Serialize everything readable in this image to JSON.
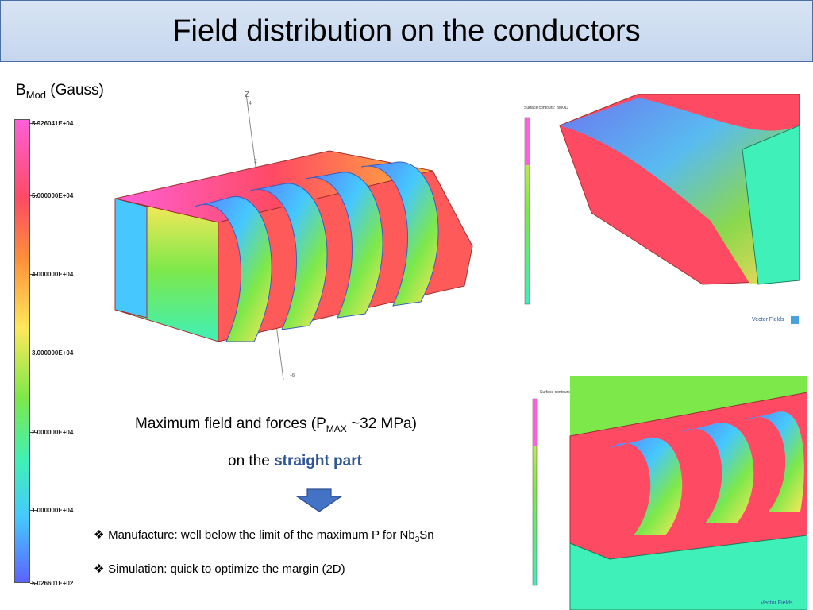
{
  "title": "Field distribution on the conductors",
  "legend": {
    "b": "B",
    "sub": "Mod",
    "unit": "(Gauss)",
    "ticks": [
      "5.926041E+04",
      "5.000000E+04",
      "4.000000E+04",
      "3.000000E+04",
      "2.000000E+04",
      "1.000000E+04",
      "5.026601E+02"
    ]
  },
  "main_text": {
    "prefix": "Maximum field and forces (P",
    "sub": "MAX",
    "suffix": " ~32 MPa)",
    "line2_prefix": "on the ",
    "line2_emph": "straight part"
  },
  "bullets": [
    {
      "prefix": "Manufacture: well below the limit of the maximum P for Nb",
      "sub": "3",
      "suffix": "Sn"
    },
    {
      "prefix": "Simulation: quick to optimize the margin (2D)",
      "sub": "",
      "suffix": ""
    }
  ],
  "inset_labels": {
    "top_caption": "Surface contours: BMOD",
    "bottom_caption": "Surface contours: BMOD",
    "brand": "Vector Fields"
  },
  "axis_labels": {
    "z": "Z",
    "two": "2",
    "four": "4",
    "neg6": "-6"
  },
  "colors": {
    "title_bg": "#c9d8ef",
    "emphasis": "#2f5597",
    "arrow": "#4472c4"
  }
}
